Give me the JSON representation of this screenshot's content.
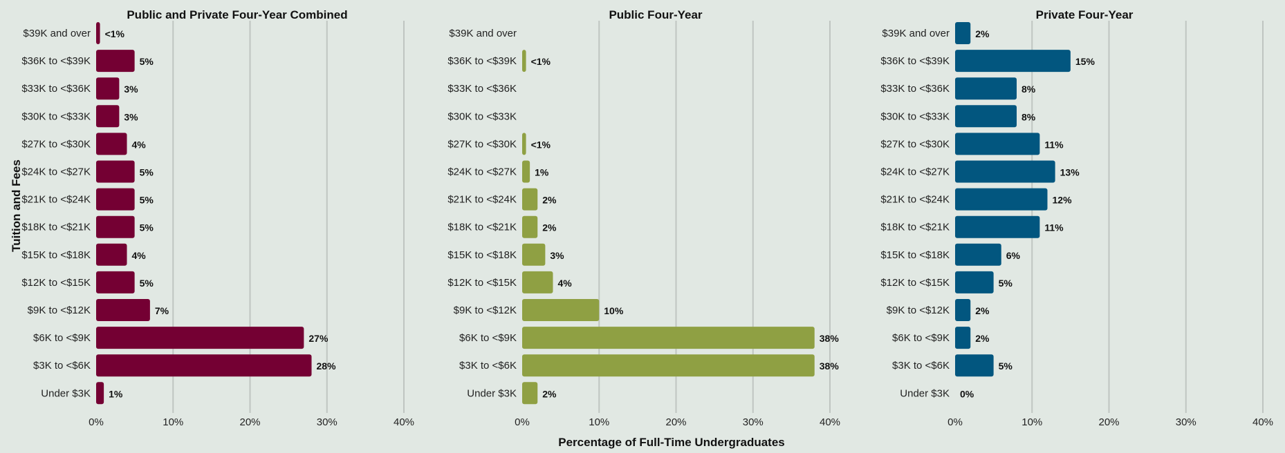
{
  "chart_data": {
    "type": "bar",
    "orientation": "horizontal",
    "xlabel": "Percentage of Full-Time Undergraduates",
    "ylabel": "Tuition and Fees",
    "xlim": [
      0,
      40
    ],
    "xticks": [
      "0%",
      "10%",
      "20%",
      "30%",
      "40%"
    ],
    "grid": true,
    "categories": [
      "$39K and over",
      "$36K to <$39K",
      "$33K to <$36K",
      "$30K to <$33K",
      "$27K to <$30K",
      "$24K to <$27K",
      "$21K to <$24K",
      "$18K to <$21K",
      "$15K to <$18K",
      "$12K to <$15K",
      "$9K to <$12K",
      "$6K to <$9K",
      "$3K to <$6K",
      "Under $3K"
    ],
    "panels": [
      {
        "title": "Public and Private Four-Year Combined",
        "color": "#740033",
        "values": [
          0.5,
          5,
          3,
          3,
          4,
          5,
          5,
          5,
          4,
          5,
          7,
          27,
          28,
          1
        ],
        "labels": [
          "<1%",
          "5%",
          "3%",
          "3%",
          "4%",
          "5%",
          "5%",
          "5%",
          "4%",
          "5%",
          "7%",
          "27%",
          "28%",
          "1%"
        ]
      },
      {
        "title": "Public Four-Year",
        "color": "#8fa043",
        "values": [
          0,
          0.5,
          0,
          0,
          0.5,
          1,
          2,
          2,
          3,
          4,
          10,
          38,
          38,
          2
        ],
        "labels": [
          "",
          "<1%",
          "",
          "",
          "<1%",
          "1%",
          "2%",
          "2%",
          "3%",
          "4%",
          "10%",
          "38%",
          "38%",
          "2%"
        ]
      },
      {
        "title": "Private Four-Year",
        "color": "#02567f",
        "values": [
          2,
          15,
          8,
          8,
          11,
          13,
          12,
          11,
          6,
          5,
          2,
          2,
          5,
          0
        ],
        "labels": [
          "2%",
          "15%",
          "8%",
          "8%",
          "11%",
          "13%",
          "12%",
          "11%",
          "6%",
          "5%",
          "2%",
          "2%",
          "5%",
          "0%"
        ]
      }
    ]
  }
}
